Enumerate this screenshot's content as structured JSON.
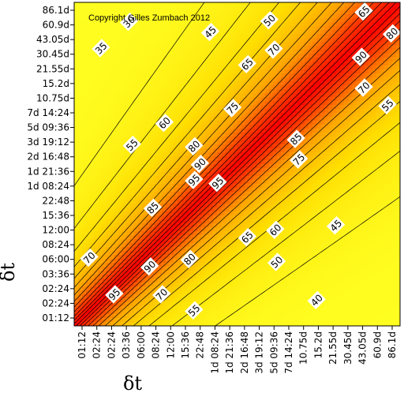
{
  "chart_data": {
    "type": "heatmap",
    "title": "",
    "annotation": "Copyright Gilles Zumbach 2012",
    "xlabel": "δt",
    "ylabel": "δt",
    "x_ticks": [
      "01:12",
      "02:24",
      "02:24",
      "03:36",
      "06:00",
      "08:24",
      "12:00",
      "15:36",
      "22:48",
      "1d 08:24",
      "1d 21:36",
      "2d 16:48",
      "3d 19:12",
      "5d 09:36",
      "7d 14:24",
      "10.75d",
      "15.2d",
      "21.55d",
      "30.45d",
      "43.05d",
      "60.9d",
      "86.1d"
    ],
    "y_ticks": [
      "01:12",
      "02:24",
      "02:24",
      "03:36",
      "06:00",
      "08:24",
      "12:00",
      "15:36",
      "22:48",
      "1d 08:24",
      "1d 21:36",
      "2d 16:48",
      "3d 19:12",
      "5d 09:36",
      "7d 14:24",
      "10.75d",
      "15.2d",
      "21.55d",
      "30.45d",
      "43.05d",
      "60.9d",
      "86.1d"
    ],
    "contour_levels": [
      30,
      35,
      40,
      45,
      50,
      55,
      60,
      65,
      70,
      75,
      80,
      85,
      90,
      95
    ],
    "contour_labels": [
      {
        "text": "30",
        "x": 3.2,
        "y": 20.2
      },
      {
        "text": "35",
        "x": 1.3,
        "y": 18.4
      },
      {
        "text": "45",
        "x": 8.7,
        "y": 19.5
      },
      {
        "text": "50",
        "x": 12.7,
        "y": 20.3
      },
      {
        "text": "65",
        "x": 19.1,
        "y": 20.9
      },
      {
        "text": "80",
        "x": 21.0,
        "y": 19.4
      },
      {
        "text": "70",
        "x": 13.0,
        "y": 18.3
      },
      {
        "text": "65",
        "x": 11.2,
        "y": 17.3
      },
      {
        "text": "90",
        "x": 18.9,
        "y": 17.8
      },
      {
        "text": "75",
        "x": 10.2,
        "y": 14.3
      },
      {
        "text": "70",
        "x": 19.1,
        "y": 15.7
      },
      {
        "text": "55",
        "x": 20.7,
        "y": 14.5
      },
      {
        "text": "60",
        "x": 5.6,
        "y": 13.3
      },
      {
        "text": "55",
        "x": 3.4,
        "y": 11.8
      },
      {
        "text": "80",
        "x": 7.6,
        "y": 11.7
      },
      {
        "text": "85",
        "x": 14.5,
        "y": 12.2
      },
      {
        "text": "90",
        "x": 8.0,
        "y": 10.5
      },
      {
        "text": "75",
        "x": 14.7,
        "y": 10.8
      },
      {
        "text": "95",
        "x": 7.6,
        "y": 9.4
      },
      {
        "text": "95",
        "x": 9.2,
        "y": 9.2
      },
      {
        "text": "85",
        "x": 4.8,
        "y": 7.5
      },
      {
        "text": "65",
        "x": 11.2,
        "y": 5.5
      },
      {
        "text": "60",
        "x": 13.1,
        "y": 6.0
      },
      {
        "text": "45",
        "x": 17.2,
        "y": 6.3
      },
      {
        "text": "70",
        "x": 0.5,
        "y": 4.1
      },
      {
        "text": "90",
        "x": 4.6,
        "y": 3.5
      },
      {
        "text": "80",
        "x": 7.3,
        "y": 4.0
      },
      {
        "text": "50",
        "x": 13.2,
        "y": 3.8
      },
      {
        "text": "95",
        "x": 2.2,
        "y": 1.6
      },
      {
        "text": "70",
        "x": 5.4,
        "y": 1.6
      },
      {
        "text": "40",
        "x": 15.9,
        "y": 1.2
      },
      {
        "text": "55",
        "x": 7.6,
        "y": 0.5
      }
    ],
    "colormap": [
      "#ffff22",
      "#ffdd00",
      "#ffa300",
      "#ff3b00",
      "#ff0000"
    ],
    "grid": false,
    "legend": "none"
  }
}
